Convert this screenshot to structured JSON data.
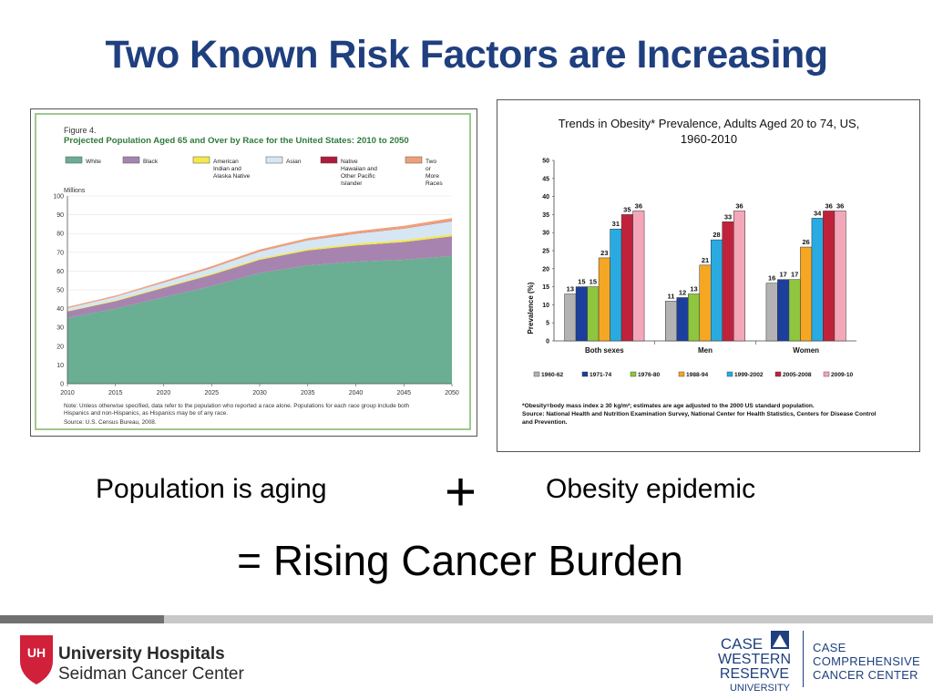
{
  "title": "Two Known Risk Factors are Increasing",
  "chart_data": [
    {
      "type": "area",
      "figure_label": "Figure 4.",
      "title": "Projected Population Aged 65 and Over by Race for the United States: 2010 to 2050",
      "ylabel": "Millions",
      "x": [
        2010,
        2015,
        2020,
        2025,
        2030,
        2035,
        2040,
        2045,
        2050
      ],
      "xticks": [
        "2010",
        "2015",
        "2020",
        "2025",
        "2030",
        "2035",
        "2040",
        "2045",
        "2050"
      ],
      "yticks": [
        "0",
        "10",
        "20",
        "30",
        "40",
        "50",
        "60",
        "70",
        "80",
        "90",
        "100"
      ],
      "ylim": [
        0,
        100
      ],
      "stacked": true,
      "series": [
        {
          "name": "White",
          "color": "#6aae93",
          "values": [
            35,
            40,
            46,
            52,
            59,
            63,
            65,
            66,
            68
          ]
        },
        {
          "name": "Black",
          "color": "#a784b0",
          "values": [
            3.5,
            4.0,
            5.0,
            6.0,
            7.0,
            8.0,
            8.7,
            9.5,
            10.5
          ]
        },
        {
          "name": "American Indian and Alaska Native",
          "color": "#f5e84a",
          "values": [
            0.3,
            0.4,
            0.5,
            0.6,
            0.7,
            0.8,
            0.9,
            1.0,
            1.1
          ]
        },
        {
          "name": "Asian",
          "color": "#d6e6f2",
          "values": [
            1.5,
            1.9,
            2.4,
            3.0,
            3.7,
            4.5,
            5.3,
            6.1,
            7.0
          ]
        },
        {
          "name": "Native Hawaiian and Other Pacific Islander",
          "color": "#b01a3b",
          "values": [
            0.05,
            0.06,
            0.07,
            0.09,
            0.1,
            0.12,
            0.14,
            0.16,
            0.18
          ]
        },
        {
          "name": "Two or More Races",
          "color": "#f0a078",
          "values": [
            0.5,
            0.6,
            0.7,
            0.9,
            1.0,
            1.1,
            1.2,
            1.3,
            1.4
          ]
        }
      ],
      "note": "Note: Unless otherwise specified, data refer to the population who reported a race alone.  Populations for each race group include both Hispanics and non-Hispanics, as Hispanics may be of any race.",
      "source": "Source: U.S. Census Bureau, 2008."
    },
    {
      "type": "bar",
      "title": "Trends in Obesity* Prevalence, Adults Aged 20 to 74, US, 1960-2010",
      "ylabel": "Prevalence (%)",
      "ylim": [
        0,
        50
      ],
      "yticks": [
        "0",
        "5",
        "10",
        "15",
        "20",
        "25",
        "30",
        "35",
        "40",
        "45",
        "50"
      ],
      "categories": [
        "Both sexes",
        "Men",
        "Women"
      ],
      "series": [
        {
          "name": "1960-62",
          "color": "#b3b3b3",
          "values": [
            13,
            11,
            16
          ]
        },
        {
          "name": "1971-74",
          "color": "#1c3f9e",
          "values": [
            15,
            12,
            17
          ]
        },
        {
          "name": "1976-80",
          "color": "#8ec63f",
          "values": [
            15,
            13,
            17
          ]
        },
        {
          "name": "1988-94",
          "color": "#f5a623",
          "values": [
            23,
            21,
            26
          ]
        },
        {
          "name": "1999-2002",
          "color": "#29abe2",
          "values": [
            31,
            28,
            34
          ]
        },
        {
          "name": "2005-2008",
          "color": "#c1223b",
          "values": [
            35,
            33,
            36
          ]
        },
        {
          "name": "2009-10",
          "color": "#f4a7b9",
          "values": [
            36,
            36,
            36
          ]
        }
      ],
      "footnote": "*Obesity=body mass index ≥ 30 kg/m²; estimates are age adjusted to the 2000 US standard population.",
      "source": "Source: National Health and Nutrition Examination Survey, National Center for Health Statistics, Centers for Disease Control and Prevention."
    }
  ],
  "captions": {
    "left": "Population is aging",
    "plus": "+",
    "right": "Obesity epidemic",
    "result": "= Rising Cancer Burden"
  },
  "footer": {
    "uh_line1": "University Hospitals",
    "uh_line2": "Seidman Cancer Center",
    "uh_mark": "UH",
    "cw_line1": "CASE",
    "cw_line2": "WESTERN",
    "cw_line3": "RESERVE",
    "cw_line4": "UNIVERSITY",
    "cc_line1": "CASE",
    "cc_line2": "COMPREHENSIVE",
    "cc_line3": "CANCER CENTER"
  }
}
